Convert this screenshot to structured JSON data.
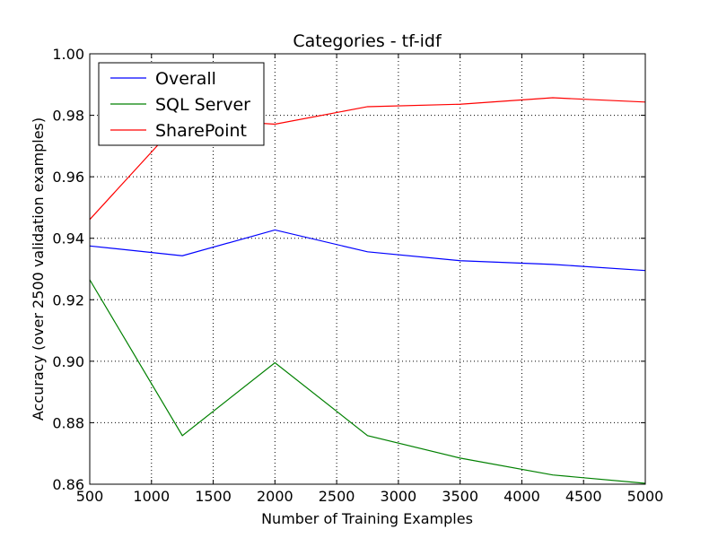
{
  "chart_data": {
    "type": "line",
    "title": "Categories - tf-idf",
    "xlabel": "Number of Training Examples",
    "ylabel": "Accuracy (over 2500 validation examples)",
    "xlim": [
      500,
      5000
    ],
    "ylim": [
      0.86,
      1.0
    ],
    "x_ticks": [
      "500",
      "1000",
      "1500",
      "2000",
      "2500",
      "3000",
      "3500",
      "4000",
      "4500",
      "5000"
    ],
    "y_ticks": [
      "0.86",
      "0.88",
      "0.90",
      "0.92",
      "0.94",
      "0.96",
      "0.98",
      "1.00"
    ],
    "grid": true,
    "legend_position": "top-left",
    "x": [
      500,
      1250,
      2000,
      2750,
      3500,
      4250,
      5000
    ],
    "series": [
      {
        "name": "Overall",
        "color": "#0000ff",
        "values": [
          0.9375,
          0.9343,
          0.9427,
          0.9356,
          0.9327,
          0.9315,
          0.9295
        ]
      },
      {
        "name": "SQL Server",
        "color": "#008000",
        "values": [
          0.9265,
          0.8758,
          0.8995,
          0.8758,
          0.8685,
          0.863,
          0.8603
        ]
      },
      {
        "name": "SharePoint",
        "color": "#ff0000",
        "values": [
          0.9461,
          0.979,
          0.9771,
          0.9828,
          0.9836,
          0.9857,
          0.9843
        ]
      }
    ]
  }
}
